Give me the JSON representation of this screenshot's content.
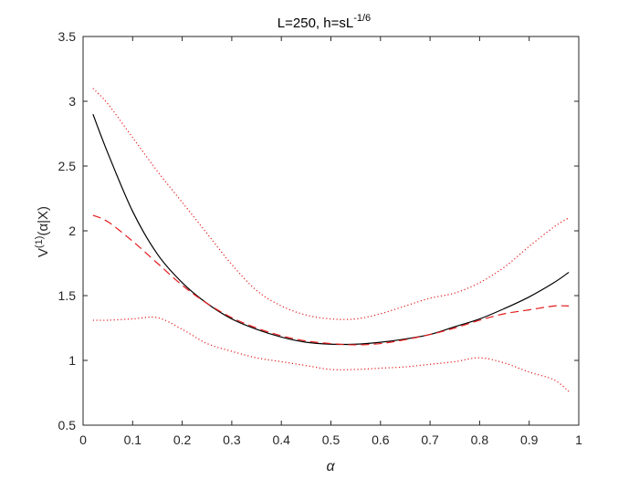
{
  "chart_data": {
    "type": "line",
    "title": {
      "main": "L=250, h=sL",
      "superscript": "-1/6"
    },
    "xlabel": "α",
    "ylabel": {
      "base": "V",
      "superscript": "(1)",
      "rest": "(α|X)"
    },
    "xlim": [
      0,
      1
    ],
    "ylim": [
      0.5,
      3.5
    ],
    "x_ticks": [
      0,
      0.1,
      0.2,
      0.3,
      0.4,
      0.5,
      0.6,
      0.7,
      0.8,
      0.9,
      1
    ],
    "x_tick_labels": [
      "0",
      "0.1",
      "0.2",
      "0.3",
      "0.4",
      "0.5",
      "0.6",
      "0.7",
      "0.8",
      "0.9",
      "1"
    ],
    "y_ticks": [
      0.5,
      1,
      1.5,
      2,
      2.5,
      3,
      3.5
    ],
    "y_tick_labels": [
      "0.5",
      "1",
      "1.5",
      "2",
      "2.5",
      "3",
      "3.5"
    ],
    "grid": false,
    "legend": "none",
    "series": [
      {
        "style": "solid",
        "color": "#000000",
        "x": [
          0.02,
          0.05,
          0.1,
          0.15,
          0.2,
          0.25,
          0.3,
          0.35,
          0.4,
          0.45,
          0.5,
          0.55,
          0.6,
          0.65,
          0.7,
          0.75,
          0.8,
          0.85,
          0.9,
          0.95,
          0.98
        ],
        "y": [
          2.9,
          2.6,
          2.15,
          1.82,
          1.6,
          1.44,
          1.32,
          1.24,
          1.18,
          1.14,
          1.125,
          1.125,
          1.14,
          1.165,
          1.2,
          1.26,
          1.32,
          1.4,
          1.49,
          1.6,
          1.68
        ]
      },
      {
        "style": "dashed",
        "color": "#e41a1c",
        "x": [
          0.02,
          0.05,
          0.1,
          0.15,
          0.2,
          0.25,
          0.3,
          0.35,
          0.4,
          0.45,
          0.5,
          0.55,
          0.6,
          0.65,
          0.7,
          0.75,
          0.8,
          0.85,
          0.9,
          0.95,
          0.98
        ],
        "y": [
          2.12,
          2.07,
          1.92,
          1.75,
          1.58,
          1.44,
          1.33,
          1.25,
          1.19,
          1.15,
          1.13,
          1.12,
          1.13,
          1.16,
          1.2,
          1.25,
          1.31,
          1.36,
          1.39,
          1.42,
          1.42
        ]
      },
      {
        "style": "dotted",
        "color": "#e41a1c",
        "x": [
          0.02,
          0.05,
          0.1,
          0.15,
          0.2,
          0.25,
          0.3,
          0.35,
          0.4,
          0.45,
          0.5,
          0.55,
          0.6,
          0.65,
          0.7,
          0.75,
          0.8,
          0.85,
          0.9,
          0.95,
          0.98
        ],
        "y": [
          3.1,
          2.98,
          2.72,
          2.46,
          2.22,
          1.98,
          1.74,
          1.54,
          1.42,
          1.35,
          1.32,
          1.32,
          1.36,
          1.42,
          1.48,
          1.52,
          1.6,
          1.72,
          1.88,
          2.03,
          2.1
        ]
      },
      {
        "style": "dotted",
        "color": "#e41a1c",
        "x": [
          0.02,
          0.05,
          0.1,
          0.15,
          0.2,
          0.25,
          0.3,
          0.35,
          0.4,
          0.45,
          0.5,
          0.55,
          0.6,
          0.65,
          0.7,
          0.75,
          0.8,
          0.85,
          0.9,
          0.95,
          0.98
        ],
        "y": [
          1.31,
          1.31,
          1.32,
          1.33,
          1.24,
          1.13,
          1.07,
          1.02,
          0.99,
          0.96,
          0.93,
          0.93,
          0.94,
          0.95,
          0.97,
          0.99,
          1.02,
          0.98,
          0.91,
          0.85,
          0.76
        ]
      }
    ]
  }
}
